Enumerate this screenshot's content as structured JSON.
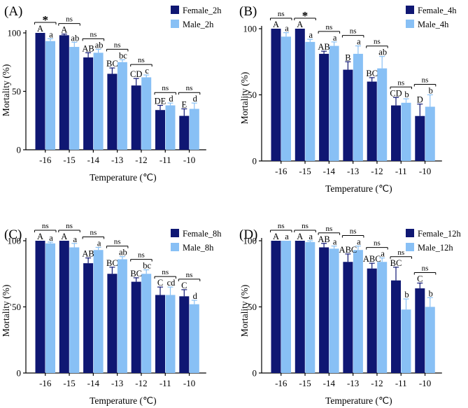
{
  "colors": {
    "female": "#0f1773",
    "male": "#88c0f5"
  },
  "chart_data": [
    {
      "type": "bar",
      "panel_label": "(A)",
      "xlabel": "Temperature (℃)",
      "ylabel": "Mortality (%)",
      "ylim": [
        0,
        100
      ],
      "yticks": [
        "0",
        "50",
        "100"
      ],
      "categories": [
        "-16",
        "-15",
        "-14",
        "-13",
        "-12",
        "-11",
        "-10"
      ],
      "series": [
        {
          "name": "Female_2h",
          "values": [
            100,
            98,
            79,
            65,
            55,
            34,
            29
          ],
          "errors": [
            0,
            1,
            4,
            5,
            6,
            4,
            6
          ],
          "letters": [
            "A",
            "A",
            "AB",
            "BC",
            "CD",
            "DE",
            "E"
          ]
        },
        {
          "name": "Male_2h",
          "values": [
            93,
            88,
            83,
            75,
            62,
            38,
            35
          ],
          "errors": [
            2,
            4,
            3,
            2,
            2,
            2,
            5
          ],
          "letters": [
            "a",
            "ab",
            "ab",
            "bc",
            "c",
            "d",
            "d"
          ]
        }
      ],
      "comparisons": [
        "*",
        "ns",
        "ns",
        "ns",
        "ns",
        "ns",
        "ns"
      ]
    },
    {
      "type": "bar",
      "panel_label": "(B)",
      "xlabel": "Temperature (℃)",
      "ylabel": "Mortality (%)",
      "ylim": [
        0,
        100
      ],
      "yticks": [
        "0",
        "50",
        "100"
      ],
      "categories": [
        "-16",
        "-15",
        "-14",
        "-13",
        "-12",
        "-11",
        "-10"
      ],
      "series": [
        {
          "name": "Female_4h",
          "values": [
            100,
            100,
            81,
            69,
            60,
            42,
            34
          ],
          "errors": [
            0,
            0,
            2,
            6,
            3,
            6,
            9
          ],
          "letters": [
            "A",
            "A",
            "AB",
            "B",
            "BC",
            "CD",
            "D"
          ]
        },
        {
          "name": "Male_4h",
          "values": [
            94,
            90,
            87,
            81,
            70,
            44,
            41
          ],
          "errors": [
            3,
            2,
            3,
            6,
            9,
            3,
            9
          ],
          "letters": [
            "a",
            "a",
            "a",
            "a",
            "ab",
            "b",
            "b"
          ]
        }
      ],
      "comparisons": [
        "ns",
        "*",
        "ns",
        "ns",
        "ns",
        "ns",
        "ns"
      ]
    },
    {
      "type": "bar",
      "panel_label": "(C)",
      "xlabel": "Temperature (℃)",
      "ylabel": "Mortality (%)",
      "ylim": [
        0,
        100
      ],
      "yticks": [
        "0",
        "50",
        "100"
      ],
      "categories": [
        "-16",
        "-15",
        "-14",
        "-13",
        "-12",
        "-11",
        "-10"
      ],
      "series": [
        {
          "name": "Female_8h",
          "values": [
            100,
            100,
            83,
            75,
            69,
            59,
            58
          ],
          "errors": [
            0,
            0,
            4,
            5,
            3,
            6,
            5
          ],
          "letters": [
            "A",
            "A",
            "AB",
            "BC",
            "BC",
            "C",
            "C"
          ]
        },
        {
          "name": "Male_8h",
          "values": [
            98,
            95,
            93,
            86,
            75,
            59,
            52
          ],
          "errors": [
            1,
            3,
            2,
            2,
            3,
            6,
            3
          ],
          "letters": [
            "a",
            "a",
            "a",
            "ab",
            "bc",
            "cd",
            "d"
          ]
        }
      ],
      "comparisons": [
        "ns",
        "ns",
        "ns",
        "ns",
        "ns",
        "ns",
        "ns"
      ]
    },
    {
      "type": "bar",
      "panel_label": "(D)",
      "xlabel": "Temperature (℃)",
      "ylabel": "Mortality (%)",
      "ylim": [
        0,
        100
      ],
      "yticks": [
        "0",
        "50",
        "100"
      ],
      "categories": [
        "-16",
        "-15",
        "-14",
        "-13",
        "-12",
        "-11",
        "-10"
      ],
      "series": [
        {
          "name": "Female_12h",
          "values": [
            100,
            100,
            95,
            84,
            79,
            70,
            64
          ],
          "errors": [
            0,
            0,
            3,
            6,
            4,
            10,
            4
          ],
          "letters": [
            "A",
            "A",
            "AB",
            "ABC",
            "ABC",
            "BC",
            "C"
          ]
        },
        {
          "name": "Male_12h",
          "values": [
            100,
            99,
            94,
            93,
            84,
            48,
            50
          ],
          "errors": [
            0,
            1,
            2,
            3,
            3,
            8,
            7
          ],
          "letters": [
            "a",
            "a",
            "a",
            "a",
            "a",
            "b",
            "b"
          ]
        }
      ],
      "comparisons": [
        "ns",
        "ns",
        "ns",
        "ns",
        "ns",
        "ns",
        "ns"
      ]
    }
  ]
}
